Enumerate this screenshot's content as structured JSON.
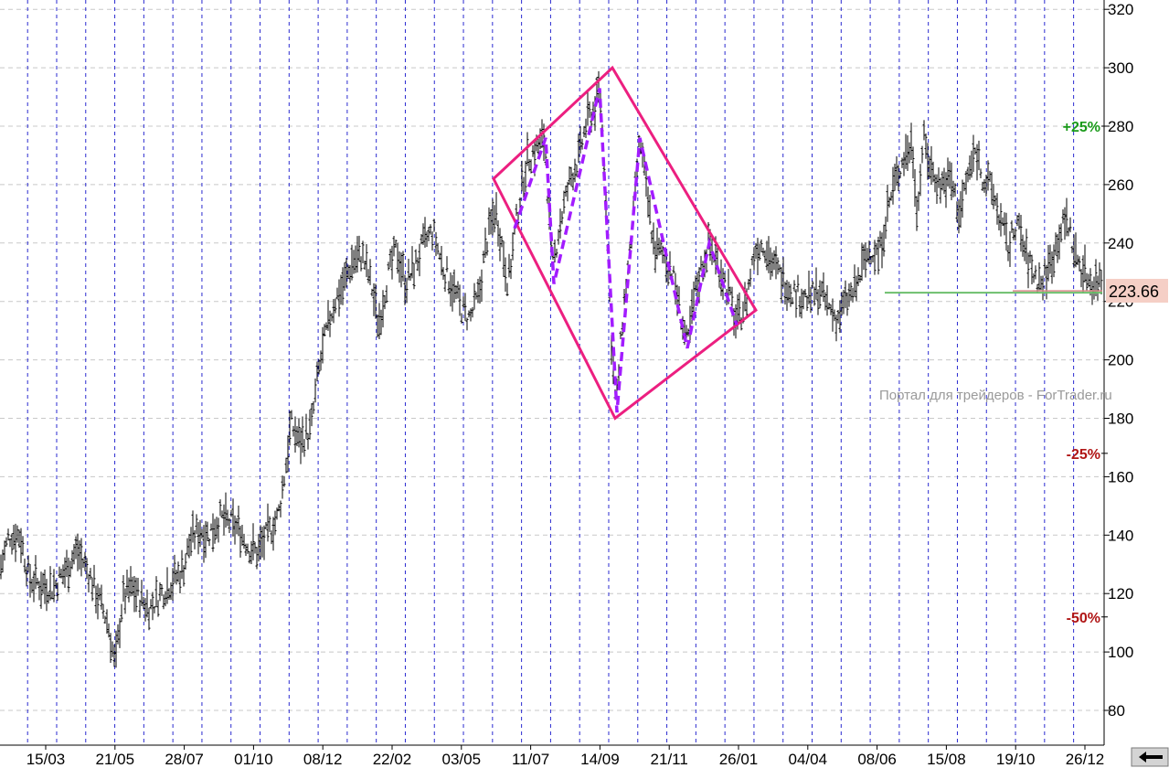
{
  "chart_data": {
    "type": "bar",
    "style": "OHLC bars",
    "ylim": [
      70,
      325
    ],
    "y_ticks": [
      80,
      100,
      120,
      140,
      160,
      180,
      200,
      220,
      240,
      260,
      280,
      300,
      320
    ],
    "x_labels": [
      "15/03",
      "21/05",
      "28/07",
      "01/10",
      "08/12",
      "22/02",
      "03/05",
      "11/07",
      "14/09",
      "21/11",
      "26/01",
      "04/04",
      "08/06",
      "15/08",
      "19/10",
      "26/12"
    ],
    "grid": {
      "vertical": "dashed blue",
      "horizontal": "dashed gray"
    },
    "last_price": "223.66",
    "percent_levels": [
      {
        "label": "+25%",
        "value": 280,
        "color": "#1a9a1a"
      },
      {
        "label": "-25%",
        "value": 168,
        "color": "#b01515"
      },
      {
        "label": "-50%",
        "value": 112,
        "color": "#b01515"
      }
    ],
    "price_path": [
      [
        0,
        128
      ],
      [
        10,
        140
      ],
      [
        22,
        140
      ],
      [
        32,
        125
      ],
      [
        45,
        123
      ],
      [
        58,
        122
      ],
      [
        72,
        128
      ],
      [
        84,
        135
      ],
      [
        96,
        128
      ],
      [
        108,
        118
      ],
      [
        118,
        110
      ],
      [
        126,
        95
      ],
      [
        134,
        118
      ],
      [
        144,
        122
      ],
      [
        154,
        118
      ],
      [
        164,
        115
      ],
      [
        176,
        120
      ],
      [
        190,
        125
      ],
      [
        200,
        128
      ],
      [
        208,
        138
      ],
      [
        218,
        142
      ],
      [
        228,
        140
      ],
      [
        240,
        146
      ],
      [
        252,
        144
      ],
      [
        262,
        142
      ],
      [
        272,
        136
      ],
      [
        282,
        134
      ],
      [
        292,
        140
      ],
      [
        304,
        146
      ],
      [
        312,
        162
      ],
      [
        318,
        178
      ],
      [
        328,
        172
      ],
      [
        340,
        176
      ],
      [
        348,
        195
      ],
      [
        356,
        208
      ],
      [
        366,
        220
      ],
      [
        376,
        226
      ],
      [
        386,
        234
      ],
      [
        396,
        236
      ],
      [
        406,
        226
      ],
      [
        414,
        212
      ],
      [
        424,
        228
      ],
      [
        434,
        238
      ],
      [
        444,
        226
      ],
      [
        454,
        232
      ],
      [
        464,
        240
      ],
      [
        474,
        244
      ],
      [
        484,
        232
      ],
      [
        494,
        226
      ],
      [
        504,
        218
      ],
      [
        514,
        214
      ],
      [
        524,
        222
      ],
      [
        532,
        240
      ],
      [
        542,
        252
      ],
      [
        550,
        238
      ],
      [
        556,
        226
      ],
      [
        566,
        250
      ],
      [
        576,
        268
      ],
      [
        586,
        272
      ],
      [
        596,
        276
      ],
      [
        604,
        230
      ],
      [
        612,
        246
      ],
      [
        624,
        262
      ],
      [
        634,
        270
      ],
      [
        642,
        282
      ],
      [
        650,
        286
      ],
      [
        656,
        293
      ],
      [
        662,
        264
      ],
      [
        668,
        212
      ],
      [
        674,
        182
      ],
      [
        682,
        218
      ],
      [
        690,
        238
      ],
      [
        700,
        276
      ],
      [
        708,
        256
      ],
      [
        716,
        238
      ],
      [
        724,
        236
      ],
      [
        734,
        232
      ],
      [
        742,
        220
      ],
      [
        752,
        204
      ],
      [
        760,
        222
      ],
      [
        768,
        232
      ],
      [
        776,
        240
      ],
      [
        784,
        234
      ],
      [
        794,
        226
      ],
      [
        806,
        212
      ],
      [
        816,
        220
      ],
      [
        826,
        238
      ],
      [
        836,
        240
      ],
      [
        846,
        232
      ],
      [
        856,
        228
      ],
      [
        866,
        224
      ],
      [
        876,
        222
      ],
      [
        886,
        221
      ],
      [
        896,
        224
      ],
      [
        906,
        218
      ],
      [
        916,
        214
      ],
      [
        926,
        220
      ],
      [
        936,
        224
      ],
      [
        944,
        232
      ],
      [
        952,
        238
      ],
      [
        962,
        236
      ],
      [
        970,
        250
      ],
      [
        980,
        262
      ],
      [
        990,
        270
      ],
      [
        998,
        274
      ],
      [
        1004,
        250
      ],
      [
        1010,
        276
      ],
      [
        1018,
        266
      ],
      [
        1028,
        260
      ],
      [
        1040,
        262
      ],
      [
        1050,
        250
      ],
      [
        1058,
        262
      ],
      [
        1068,
        272
      ],
      [
        1076,
        262
      ],
      [
        1086,
        258
      ],
      [
        1096,
        246
      ],
      [
        1104,
        238
      ],
      [
        1112,
        248
      ],
      [
        1122,
        236
      ],
      [
        1130,
        230
      ],
      [
        1140,
        226
      ],
      [
        1150,
        234
      ],
      [
        1160,
        244
      ],
      [
        1168,
        248
      ],
      [
        1176,
        236
      ],
      [
        1186,
        230
      ],
      [
        1196,
        226
      ],
      [
        1206,
        228
      ]
    ]
  },
  "annotations": {
    "diamond_vertices": [
      [
        540,
        262
      ],
      [
        670,
        300
      ],
      [
        827,
        217
      ],
      [
        673,
        180
      ]
    ],
    "wave_points": [
      [
        563,
        245
      ],
      [
        597,
        276
      ],
      [
        606,
        226
      ],
      [
        656,
        293
      ],
      [
        675,
        182
      ],
      [
        700,
        276
      ],
      [
        752,
        204
      ],
      [
        776,
        240
      ],
      [
        806,
        212
      ]
    ],
    "support_line_value": 223,
    "support_line_start_x": 968
  },
  "watermark": "Портал для трейдеров - ForTrader.ru",
  "icons": {
    "scroll_button": "arrow-left-icon"
  }
}
